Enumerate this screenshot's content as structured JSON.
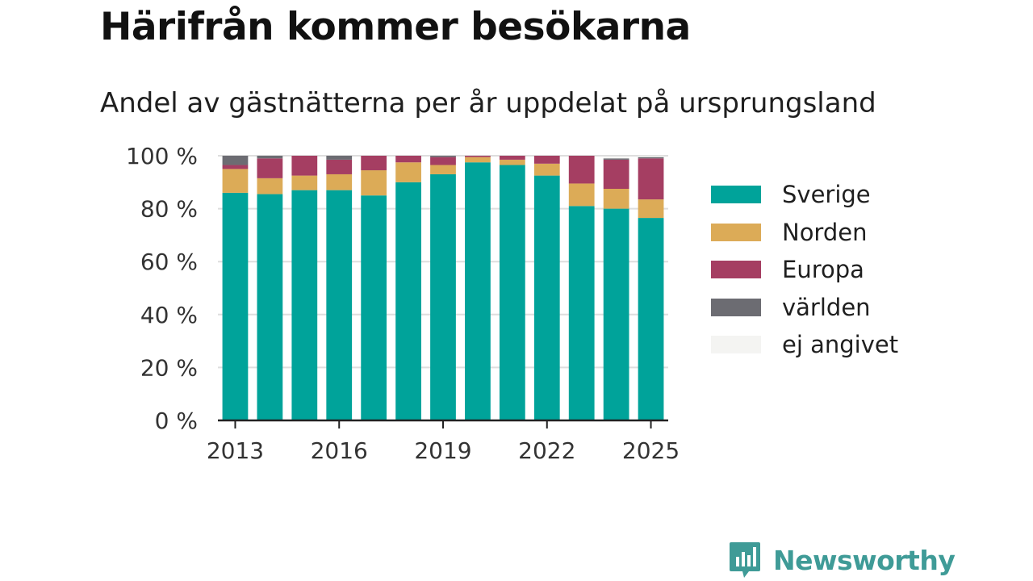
{
  "header": {
    "title": "Härifrån kommer besökarna",
    "subtitle": "Andel av gästnätterna per år uppdelat på ursprungsland"
  },
  "branding": {
    "name": "Newsworthy",
    "icon": "newsworthy-logo-icon",
    "color": "#3f9b97"
  },
  "chart_data": {
    "type": "bar",
    "stacked": true,
    "title": "Härifrån kommer besökarna",
    "subtitle": "Andel av gästnätterna per år uppdelat på ursprungsland",
    "xlabel": "",
    "ylabel": "",
    "categories": [
      2013,
      2014,
      2015,
      2016,
      2017,
      2018,
      2019,
      2020,
      2021,
      2022,
      2023,
      2024,
      2025
    ],
    "x_ticks": [
      2013,
      2016,
      2019,
      2022,
      2025
    ],
    "y_ticks": [
      0,
      20,
      40,
      60,
      80,
      100
    ],
    "y_tick_suffix": " %",
    "ylim": [
      0,
      100
    ],
    "grid": true,
    "legend_position": "right",
    "series": [
      {
        "name": "Sverige",
        "color": "#00a39a",
        "values": [
          86,
          85.5,
          87,
          87,
          85,
          90,
          93,
          97.5,
          96.5,
          92.5,
          81,
          80,
          76.5
        ]
      },
      {
        "name": "Norden",
        "color": "#dcab57",
        "values": [
          9,
          6,
          5.5,
          6,
          9.5,
          7.5,
          3.5,
          2,
          2,
          4.5,
          8.5,
          7.5,
          7
        ]
      },
      {
        "name": "Europa",
        "color": "#a53e62",
        "values": [
          1.5,
          7.5,
          7.5,
          5.5,
          5.5,
          2.5,
          3,
          0.5,
          1.5,
          3,
          10.5,
          11,
          15.5
        ]
      },
      {
        "name": "världen",
        "color": "#6c6c72",
        "values": [
          3.5,
          1,
          0,
          1.5,
          0,
          0,
          0.5,
          0,
          0,
          0,
          0,
          0.5,
          0.5
        ]
      },
      {
        "name": "ej angivet",
        "color": "#f4f4f2",
        "values": [
          0,
          0,
          0,
          0,
          0,
          0,
          0,
          0,
          0,
          0,
          0,
          0.5,
          0.5
        ]
      }
    ]
  }
}
